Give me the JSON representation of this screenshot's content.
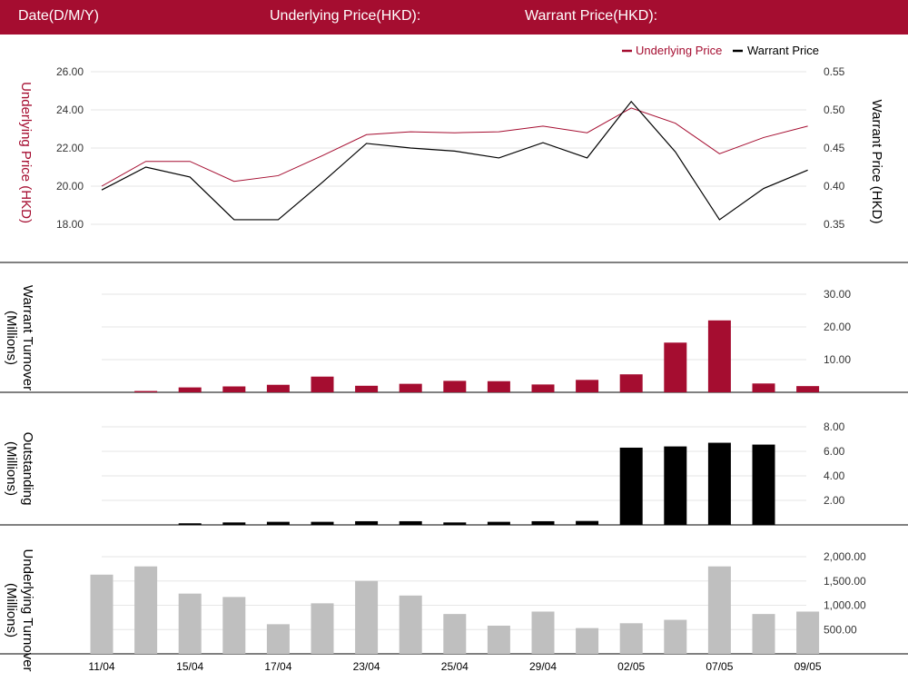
{
  "header": {
    "date_label": "Date(D/M/Y)",
    "underlying_label": "Underlying Price(HKD):",
    "warrant_label": "Warrant Price(HKD):"
  },
  "colors": {
    "brand": "#a50d30",
    "underlying": "#a50d30",
    "warrant": "#000000",
    "outstanding_bar": "#000000",
    "underlying_turnover_bar": "#bfbfbf",
    "grid": "#e6e6e6"
  },
  "chart_data": [
    {
      "type": "line",
      "legend": [
        "Underlying Price",
        "Warrant Price"
      ],
      "legend_position": "top-right",
      "ylabel_left": "Underlying Price (HKD)",
      "ylabel_right": "Warrant  Price (HKD)",
      "y_left_ticks": [
        "26.00",
        "24.00",
        "22.00",
        "20.00",
        "18.00"
      ],
      "y_right_ticks": [
        "0.55",
        "0.50",
        "0.45",
        "0.40",
        "0.35"
      ],
      "ylim_left": [
        18,
        26
      ],
      "ylim_right": [
        0.35,
        0.55
      ],
      "series": [
        {
          "name": "Underlying Price",
          "axis": "left",
          "values": [
            20.0,
            21.3,
            21.3,
            20.25,
            20.55,
            21.6,
            22.7,
            22.85,
            22.8,
            22.85,
            23.15,
            22.8,
            24.1,
            23.3,
            21.7,
            22.55,
            23.15
          ]
        },
        {
          "name": "Warrant Price",
          "axis": "right",
          "values": [
            0.395,
            0.425,
            0.412,
            0.356,
            0.356,
            0.405,
            0.456,
            0.45,
            0.446,
            0.437,
            0.457,
            0.437,
            0.511,
            0.445,
            0.356,
            0.397,
            0.421
          ]
        }
      ]
    },
    {
      "type": "bar",
      "ylabel": "Warrant  Turnover (Millions)",
      "y_ticks": [
        "30.00",
        "20.00",
        "10.00"
      ],
      "ylim": [
        0,
        30
      ],
      "values": [
        0,
        0.4,
        1.5,
        1.8,
        2.3,
        4.8,
        2.0,
        2.6,
        3.5,
        3.4,
        2.4,
        3.8,
        5.5,
        15.2,
        22.0,
        2.7,
        1.9
      ]
    },
    {
      "type": "bar",
      "ylabel": "Outstanding (Millions)",
      "y_ticks": [
        "8.00",
        "6.00",
        "4.00",
        "2.00"
      ],
      "ylim": [
        0,
        8
      ],
      "values": [
        0,
        0,
        0.13,
        0.2,
        0.25,
        0.25,
        0.3,
        0.3,
        0.2,
        0.25,
        0.3,
        0.32,
        6.3,
        6.4,
        6.7,
        6.55,
        0
      ]
    },
    {
      "type": "bar",
      "ylabel": "Underlying Turnover (Millions)",
      "y_ticks": [
        "2,000.00",
        "1,500.00",
        "1,000.00",
        "500.00"
      ],
      "ylim": [
        0,
        2000
      ],
      "values": [
        1630,
        1800,
        1240,
        1170,
        610,
        1040,
        1500,
        1200,
        820,
        580,
        870,
        530,
        630,
        700,
        1800,
        820,
        870
      ]
    }
  ],
  "x_tick_labels": [
    "11/04",
    "15/04",
    "17/04",
    "23/04",
    "25/04",
    "29/04",
    "02/05",
    "07/05",
    "09/05"
  ],
  "x_tick_indices": [
    0,
    2,
    4,
    6,
    8,
    10,
    12,
    14,
    16
  ]
}
